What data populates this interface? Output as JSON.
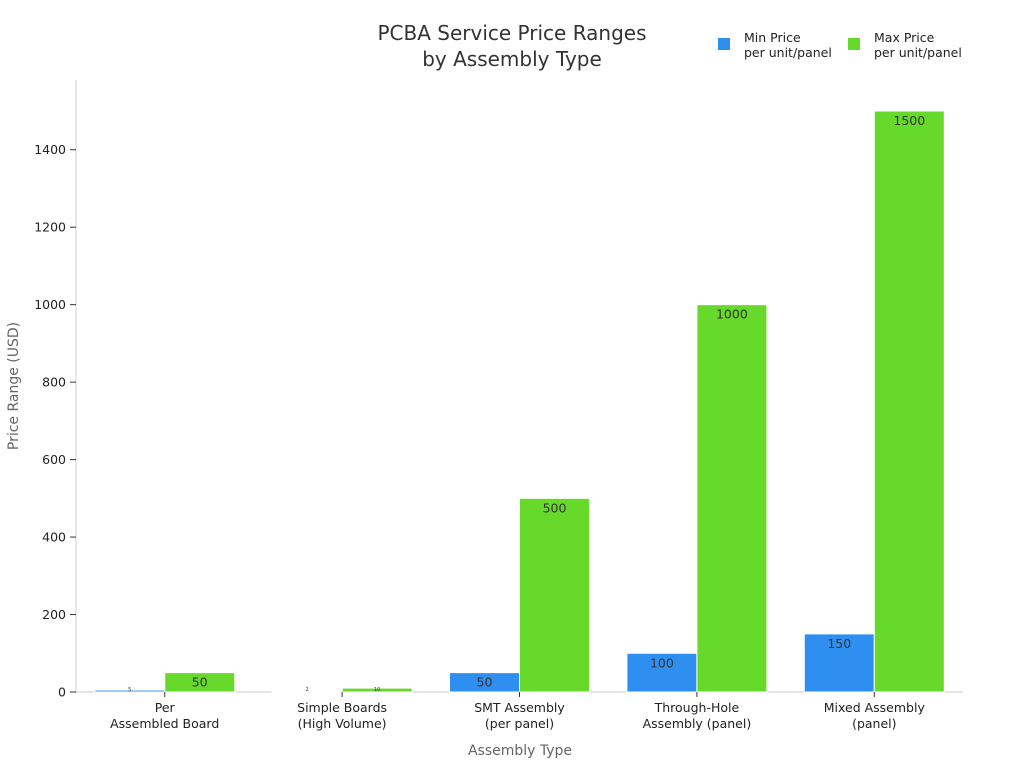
{
  "chart_data": {
    "type": "bar",
    "title_lines": [
      "PCBA Service Price Ranges",
      "by Assembly Type"
    ],
    "xlabel": "Assembly Type",
    "ylabel": "Price Range (USD)",
    "ylim": [
      0,
      1580
    ],
    "yticks": [
      0,
      200,
      400,
      600,
      800,
      1000,
      1200,
      1400
    ],
    "categories": [
      [
        "Per",
        "Assembled Board"
      ],
      [
        "Simple Boards",
        "(High Volume)"
      ],
      [
        "SMT Assembly",
        "(per panel)"
      ],
      [
        "Through-Hole",
        "Assembly (panel)"
      ],
      [
        "Mixed Assembly",
        "(panel)"
      ]
    ],
    "series": [
      {
        "name_lines": [
          "Min Price",
          "per unit/panel"
        ],
        "color": "#2e8ff0",
        "values": [
          5,
          2,
          50,
          100,
          150
        ],
        "labels": [
          "5",
          "2",
          "50",
          "100",
          "150"
        ]
      },
      {
        "name_lines": [
          "Max Price",
          "per unit/panel"
        ],
        "color": "#66d92a",
        "values": [
          50,
          10,
          500,
          1000,
          1500
        ],
        "labels": [
          "50",
          "10",
          "500",
          "1000",
          "1500"
        ]
      }
    ],
    "legend_position": "top-right",
    "grid": false
  }
}
